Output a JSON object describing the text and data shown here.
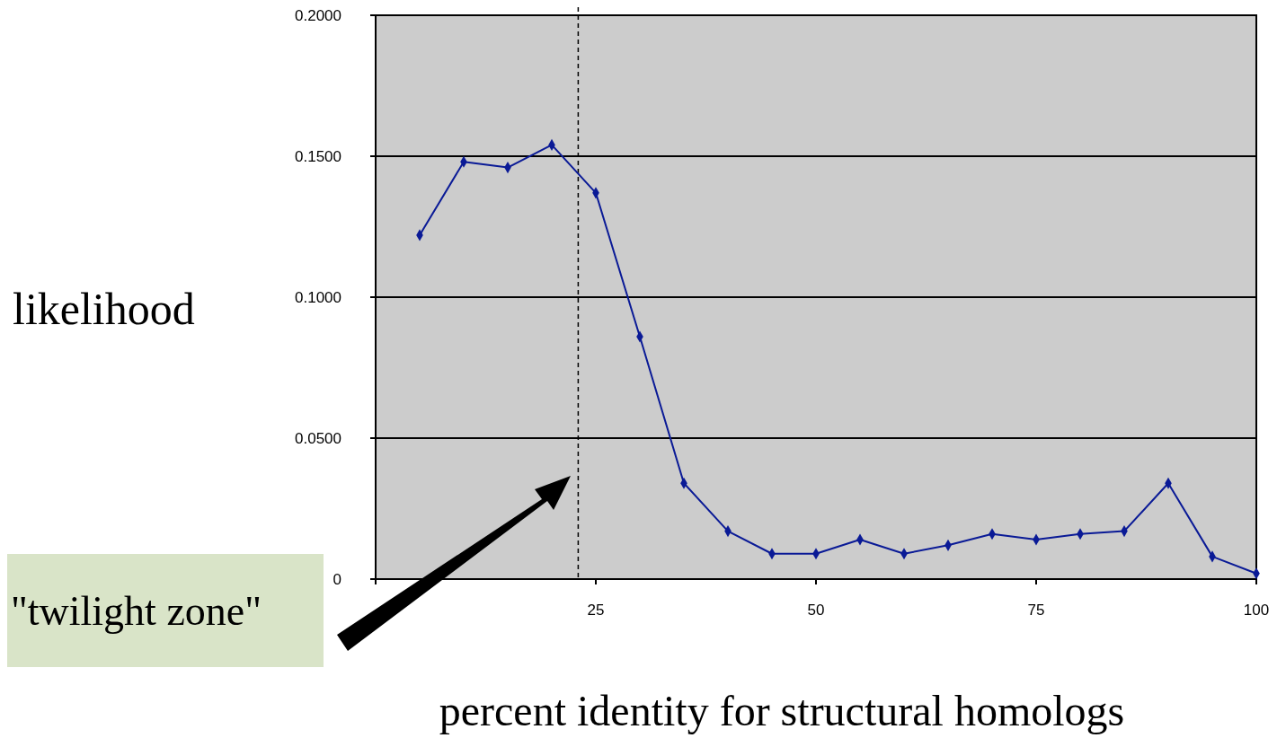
{
  "chart_data": {
    "type": "line",
    "ylabel": "likelihood",
    "xlabel": "percent identity for structural homologs",
    "x": [
      5,
      10,
      15,
      20,
      25,
      30,
      35,
      40,
      45,
      50,
      55,
      60,
      65,
      70,
      75,
      80,
      85,
      90,
      95,
      100
    ],
    "series": [
      {
        "color": "#0a1a96",
        "values": [
          0.122,
          0.148,
          0.146,
          0.154,
          0.137,
          0.086,
          0.034,
          0.017,
          0.009,
          0.009,
          0.014,
          0.009,
          0.012,
          0.016,
          0.014,
          0.016,
          0.017,
          0.034,
          0.008,
          0.002
        ]
      }
    ],
    "xlim": [
      0,
      100
    ],
    "xticks": [
      {
        "value": 0,
        "label": null
      },
      25,
      50,
      75,
      100
    ],
    "ylim": [
      0,
      0.2
    ],
    "yticks": [
      {
        "value": 0,
        "label": "0"
      },
      {
        "value": 0.05,
        "label": "0.0500"
      },
      {
        "value": 0.1,
        "label": "0.1000"
      },
      {
        "value": 0.15,
        "label": "0.1500"
      },
      {
        "value": 0.2,
        "label": "0.2000"
      }
    ],
    "grid": "y",
    "marker": "diamond",
    "line_style": "solid",
    "ref_lines": [
      {
        "axis": "x",
        "value": 23,
        "line_style": "dashed",
        "color": "#000000"
      }
    ],
    "annotations": [
      "\"twilight zone\""
    ]
  }
}
